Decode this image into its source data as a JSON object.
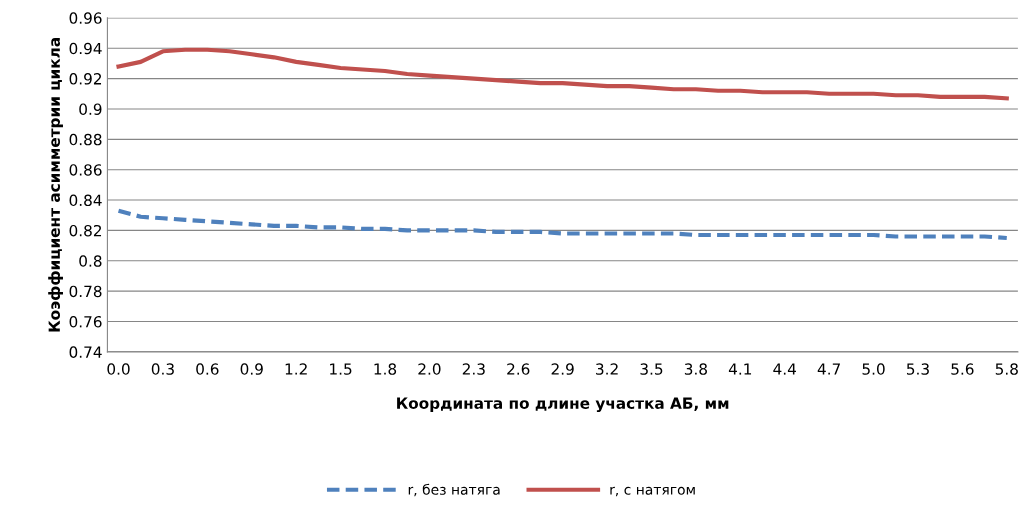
{
  "chart_data": {
    "type": "line",
    "xlabel": "Координата по длине участка АБ, мм",
    "ylabel": "Коэффициент асимметрии цикла",
    "categories": [
      "0.0",
      null,
      "0.3",
      null,
      "0.6",
      null,
      "0.9",
      null,
      "1.2",
      null,
      "1.5",
      null,
      "1.8",
      null,
      "2.0",
      null,
      "2.3",
      null,
      "2.6",
      null,
      "2.9",
      null,
      "3.2",
      null,
      "3.5",
      null,
      "3.8",
      null,
      "4.1",
      null,
      "4.4",
      null,
      "4.7",
      null,
      "5.0",
      null,
      "5.3",
      null,
      "5.6",
      null,
      "5.8"
    ],
    "series": [
      {
        "name": "r, без натяга",
        "color": "#4f81bd",
        "line_style": "dashed",
        "values": [
          0.833,
          0.829,
          0.828,
          0.827,
          0.826,
          0.825,
          0.824,
          0.823,
          0.823,
          0.822,
          0.822,
          0.821,
          0.821,
          0.82,
          0.82,
          0.82,
          0.82,
          0.819,
          0.819,
          0.819,
          0.818,
          0.818,
          0.818,
          0.818,
          0.818,
          0.818,
          0.817,
          0.817,
          0.817,
          0.817,
          0.817,
          0.817,
          0.817,
          0.817,
          0.817,
          0.816,
          0.816,
          0.816,
          0.816,
          0.816,
          0.815
        ]
      },
      {
        "name": "r, с натягом",
        "color": "#c0504d",
        "line_style": "solid",
        "values": [
          0.928,
          0.931,
          0.938,
          0.939,
          0.939,
          0.938,
          0.936,
          0.934,
          0.931,
          0.929,
          0.927,
          0.926,
          0.925,
          0.923,
          0.922,
          0.921,
          0.92,
          0.919,
          0.918,
          0.917,
          0.917,
          0.916,
          0.915,
          0.915,
          0.914,
          0.913,
          0.913,
          0.912,
          0.912,
          0.911,
          0.911,
          0.911,
          0.91,
          0.91,
          0.91,
          0.909,
          0.909,
          0.908,
          0.908,
          0.908,
          0.907
        ]
      }
    ],
    "ylim": [
      0.74,
      0.96
    ],
    "yticks": [
      0.74,
      0.76,
      0.78,
      0.8,
      0.82,
      0.84,
      0.86,
      0.88,
      0.9,
      0.92,
      0.94,
      0.96
    ],
    "grid": "y",
    "legend": "bottom",
    "marker": "none"
  }
}
